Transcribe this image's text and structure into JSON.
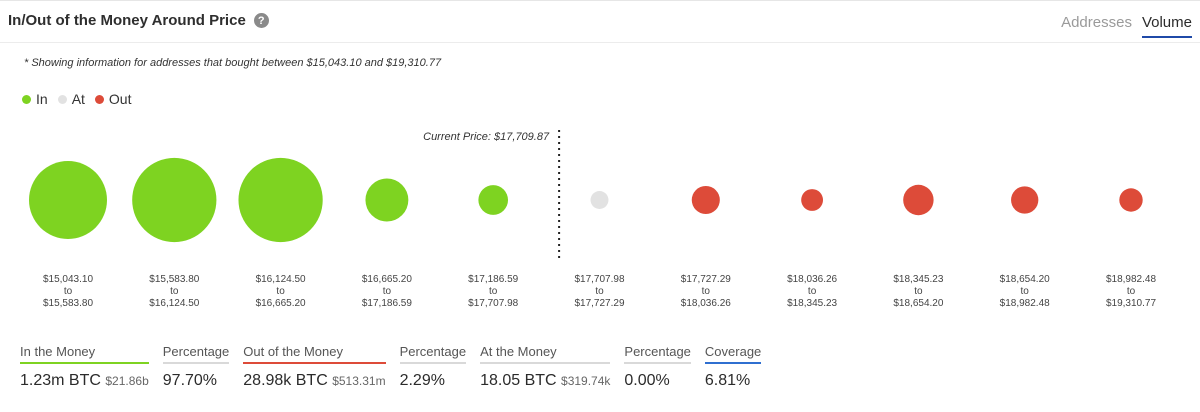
{
  "header": {
    "title": "In/Out of the Money Around Price",
    "help_glyph": "?",
    "tabs": [
      {
        "label": "Addresses",
        "active": false
      },
      {
        "label": "Volume",
        "active": true
      }
    ]
  },
  "note": "* Showing information for addresses that bought between $15,043.10 and $19,310.77",
  "legend": [
    {
      "label": "In",
      "color": "#7ed321"
    },
    {
      "label": "At",
      "color": "#e2e2e2"
    },
    {
      "label": "Out",
      "color": "#dd4b39"
    }
  ],
  "chart_data": {
    "type": "scatter",
    "current_price_label": "Current Price: $17,709.87",
    "current_price_after_index": 4,
    "categories": [
      {
        "from": "$15,043.10",
        "to_word": "to",
        "to": "$15,583.80"
      },
      {
        "from": "$15,583.80",
        "to_word": "to",
        "to": "$16,124.50"
      },
      {
        "from": "$16,124.50",
        "to_word": "to",
        "to": "$16,665.20"
      },
      {
        "from": "$16,665.20",
        "to_word": "to",
        "to": "$17,186.59"
      },
      {
        "from": "$17,186.59",
        "to_word": "to",
        "to": "$17,707.98"
      },
      {
        "from": "$17,707.98",
        "to_word": "to",
        "to": "$17,727.29"
      },
      {
        "from": "$17,727.29",
        "to_word": "to",
        "to": "$18,036.26"
      },
      {
        "from": "$18,036.26",
        "to_word": "to",
        "to": "$18,345.23"
      },
      {
        "from": "$18,345.23",
        "to_word": "to",
        "to": "$18,654.20"
      },
      {
        "from": "$18,654.20",
        "to_word": "to",
        "to": "$18,982.48"
      },
      {
        "from": "$18,982.48",
        "to_word": "to",
        "to": "$19,310.77"
      }
    ],
    "status": [
      "in",
      "in",
      "in",
      "in",
      "in",
      "at",
      "out",
      "out",
      "out",
      "out",
      "out"
    ],
    "relative_size": [
      1.0,
      1.08,
      1.08,
      0.55,
      0.38,
      0.23,
      0.36,
      0.28,
      0.39,
      0.35,
      0.3
    ],
    "colors": {
      "in": "#7ed321",
      "at": "#e2e2e2",
      "out": "#dd4b39"
    }
  },
  "stats": [
    {
      "label": "In the Money",
      "value": "1.23m BTC",
      "sub": "$21.86b",
      "rule_color": "#7ed321"
    },
    {
      "label": "Percentage",
      "value": "97.70%",
      "sub": "",
      "rule_color": "#d9d9d9"
    },
    {
      "label": "Out of the Money",
      "value": "28.98k BTC",
      "sub": "$513.31m",
      "rule_color": "#dd4b39"
    },
    {
      "label": "Percentage",
      "value": "2.29%",
      "sub": "",
      "rule_color": "#d9d9d9"
    },
    {
      "label": "At the Money",
      "value": "18.05 BTC",
      "sub": "$319.74k",
      "rule_color": "#d9d9d9"
    },
    {
      "label": "Percentage",
      "value": "0.00%",
      "sub": "",
      "rule_color": "#d9d9d9"
    },
    {
      "label": "Coverage",
      "value": "6.81%",
      "sub": "",
      "rule_color": "#2f6fd0"
    }
  ]
}
